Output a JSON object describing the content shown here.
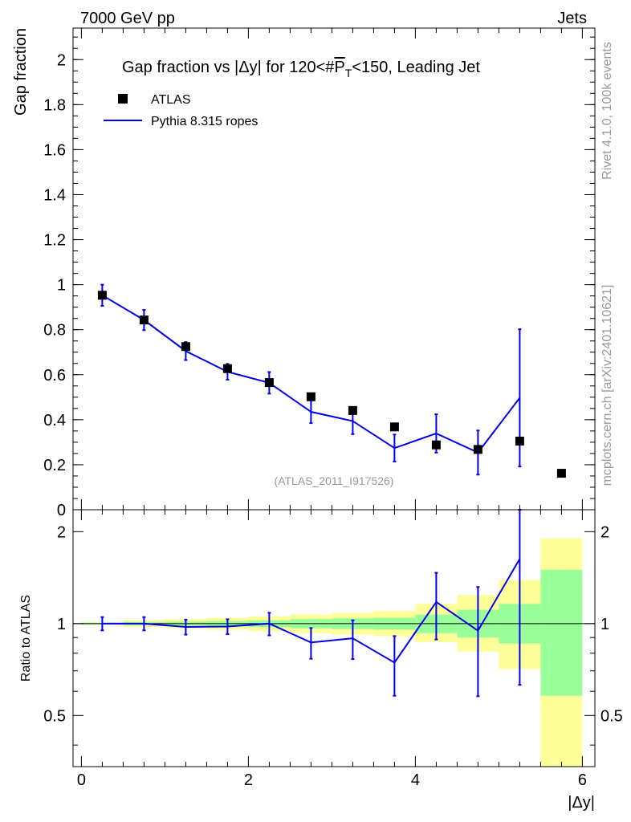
{
  "header": {
    "left": "7000 GeV pp",
    "right": "Jets"
  },
  "side_labels": {
    "rivet": "Rivet 4.1.0,  100k events",
    "mcplots": "mcplots.cern.ch [arXiv:2401.10621]"
  },
  "colors": {
    "data": "#000000",
    "mc": "#0000ee",
    "band_inner": "#99ff99",
    "band_outer": "#ffff99"
  },
  "chart_data": [
    {
      "type": "scatter",
      "title_parts": {
        "pre": "Gap fraction vs |Δy| for 120<#",
        "symbol": "P",
        "sub": "T",
        "post": "<150, Leading Jet"
      },
      "ylabel": "Gap fraction",
      "xlabel": "|Δy|",
      "xlim": [
        -0.1,
        6.15
      ],
      "ylim": [
        0,
        2.14
      ],
      "yticks": [
        0,
        0.2,
        0.4,
        0.6,
        0.8,
        1,
        1.2,
        1.4,
        1.6,
        1.8,
        2
      ],
      "ytick_labels": [
        "0",
        "0.2",
        "0.4",
        "0.6",
        "0.8",
        "1",
        "1.2",
        "1.4",
        "1.6",
        "1.8",
        "2"
      ],
      "analysis_label": "(ATLAS_2011_I917526)",
      "legend": {
        "position": "top-left",
        "entries": [
          "ATLAS",
          "Pythia 8.315 ropes"
        ]
      },
      "series": [
        {
          "name": "ATLAS",
          "x": [
            0.25,
            0.75,
            1.25,
            1.75,
            2.25,
            2.75,
            3.25,
            3.75,
            4.25,
            4.75,
            5.25,
            5.75
          ],
          "y": [
            0.953,
            0.843,
            0.725,
            0.627,
            0.565,
            0.502,
            0.441,
            0.368,
            0.288,
            0.268,
            0.305,
            0.162
          ]
        },
        {
          "name": "Pythia 8.315 ropes",
          "x": [
            0.25,
            0.75,
            1.25,
            1.75,
            2.25,
            2.75,
            3.25,
            3.75,
            4.25,
            4.75,
            5.25
          ],
          "y": [
            0.953,
            0.843,
            0.705,
            0.613,
            0.564,
            0.435,
            0.394,
            0.274,
            0.339,
            0.254,
            0.497
          ],
          "err": [
            0.047,
            0.045,
            0.04,
            0.035,
            0.048,
            0.05,
            0.058,
            0.06,
            0.085,
            0.098,
            0.305
          ]
        }
      ]
    },
    {
      "type": "line",
      "ylabel": "Ratio to ATLAS",
      "xlabel": "|Δy|",
      "xlim": [
        -0.1,
        6.15
      ],
      "ylim": [
        0.34,
        2.36
      ],
      "xticks": [
        0,
        2,
        4,
        6
      ],
      "xtick_labels": [
        "0",
        "2",
        "4",
        "6"
      ],
      "yticks_labeled": [
        0.5,
        1,
        2
      ],
      "ytick_labels": [
        "0.5",
        "1",
        "2"
      ],
      "reference": 1,
      "bands": {
        "x_edges": [
          0,
          0.5,
          1,
          1.5,
          2,
          2.5,
          3,
          3.5,
          4,
          4.5,
          5,
          5.5,
          6
        ],
        "inner_lo": [
          0.993,
          0.988,
          0.985,
          0.98,
          0.975,
          0.965,
          0.96,
          0.955,
          0.93,
          0.9,
          0.86,
          0.58
        ],
        "inner_hi": [
          1.007,
          1.012,
          1.015,
          1.02,
          1.025,
          1.035,
          1.04,
          1.045,
          1.07,
          1.11,
          1.16,
          1.5
        ],
        "outer_lo": [
          0.99,
          0.975,
          0.965,
          0.955,
          0.945,
          0.93,
          0.92,
          0.91,
          0.87,
          0.81,
          0.71,
          0.3
        ],
        "outer_hi": [
          1.01,
          1.025,
          1.035,
          1.045,
          1.055,
          1.07,
          1.085,
          1.1,
          1.16,
          1.24,
          1.39,
          1.9
        ]
      },
      "series": [
        {
          "name": "Pythia 8.315 ropes",
          "x": [
            0.25,
            0.75,
            1.25,
            1.75,
            2.25,
            2.75,
            3.25,
            3.75,
            4.25,
            4.75,
            5.25
          ],
          "y": [
            1.0,
            1.0,
            0.975,
            0.978,
            1.0,
            0.867,
            0.895,
            0.745,
            1.177,
            0.948,
            1.63
          ],
          "err_lo": [
            0.05,
            0.05,
            0.055,
            0.055,
            0.085,
            0.1,
            0.13,
            0.165,
            0.29,
            0.37,
            1.0
          ],
          "err_hi": [
            0.05,
            0.05,
            0.055,
            0.055,
            0.085,
            0.1,
            0.13,
            0.165,
            0.29,
            0.37,
            1.0
          ]
        }
      ]
    }
  ]
}
